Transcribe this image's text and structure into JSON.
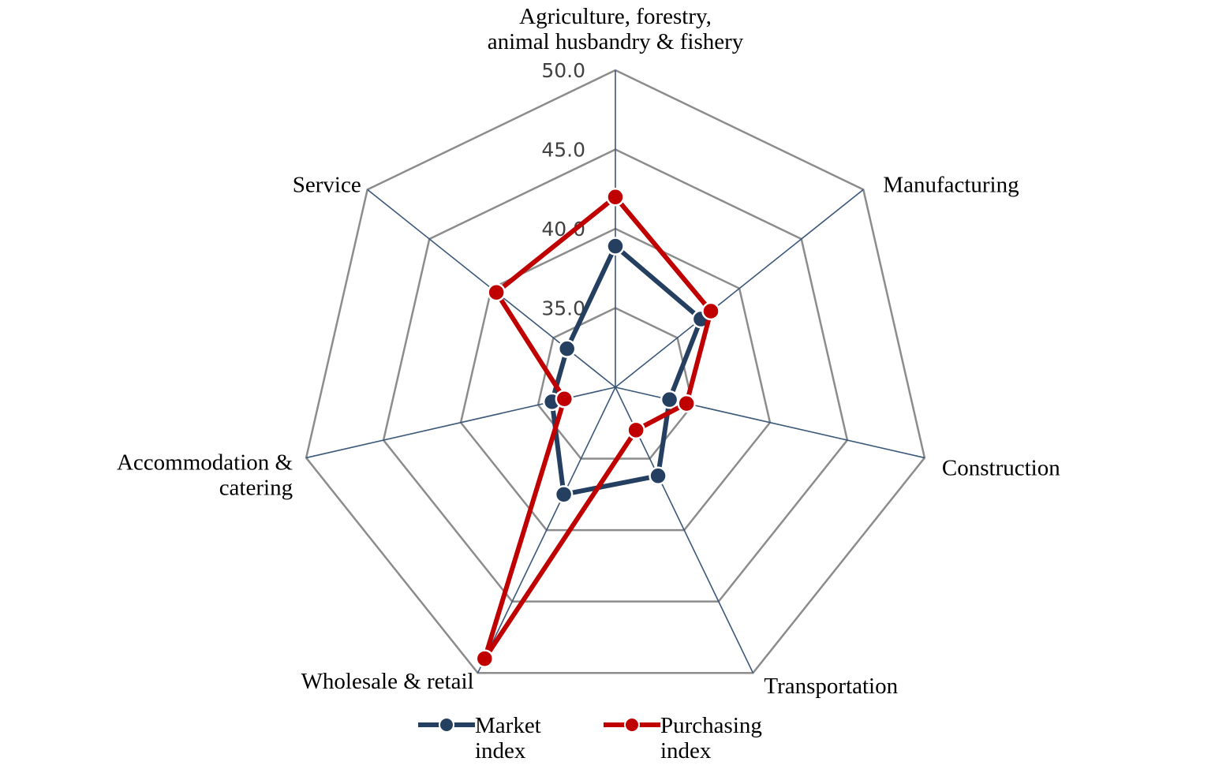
{
  "chart_data": {
    "type": "radar",
    "categories": [
      [
        "Agriculture, forestry,",
        "animal husbandry & fishery"
      ],
      [
        "Manufacturing"
      ],
      [
        "Construction"
      ],
      [
        "Transportation"
      ],
      [
        "Wholesale & retail"
      ],
      [
        "Accommodation &",
        "catering"
      ],
      [
        "Service"
      ]
    ],
    "rlim": [
      30.0,
      50.0
    ],
    "ticks": [
      "35.0",
      "40.0",
      "45.0",
      "50.0"
    ],
    "tick_values": [
      35,
      40,
      45,
      50
    ],
    "grid": true,
    "legend_position": "bottom",
    "series": [
      {
        "name": [
          "Market",
          "index"
        ],
        "color": "#243F60",
        "values": [
          38.9,
          36.9,
          33.5,
          36.2,
          37.5,
          34.1,
          33.9
        ]
      },
      {
        "name": [
          "Purchasing",
          "index"
        ],
        "color": "#C00000",
        "values": [
          42.0,
          37.7,
          34.6,
          33.0,
          49.0,
          33.3,
          39.6
        ]
      }
    ]
  }
}
